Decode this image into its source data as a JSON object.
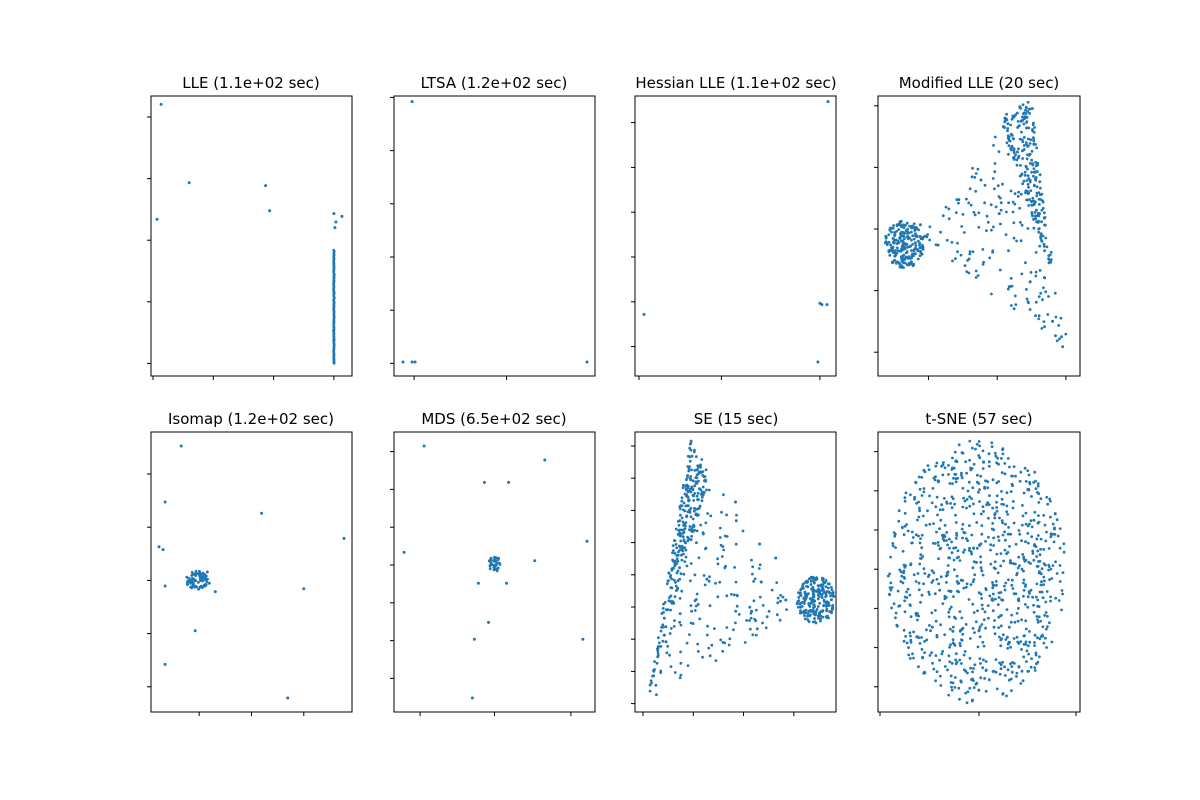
{
  "colors": {
    "points": "#1f77b4",
    "frame": "#000000",
    "background": "#ffffff"
  },
  "chart_data": [
    {
      "type": "scatter",
      "title": "LLE (1.1e+02 sec)",
      "xlabel": "",
      "ylabel": "",
      "xlim": [
        0,
        10
      ],
      "ylim": [
        0,
        10
      ],
      "tick_labels_shown": false,
      "xticks": [
        0.1,
        3.1,
        6.1,
        9.1
      ],
      "yticks": [
        0.45,
        2.65,
        4.85,
        7.05,
        9.25
      ],
      "series": [
        {
          "values": [
            {
              "x": 0.5,
              "y": 9.7
            },
            {
              "x": 1.9,
              "y": 6.9
            },
            {
              "x": 5.7,
              "y": 6.8
            },
            {
              "x": 5.9,
              "y": 5.9
            },
            {
              "x": 0.3,
              "y": 5.6
            },
            {
              "x": 9.1,
              "y": 5.8
            },
            {
              "x": 9.2,
              "y": 5.5
            },
            {
              "x": 9.5,
              "y": 5.7
            },
            {
              "x": 9.15,
              "y": 5.3
            }
          ],
          "segments": [
            {
              "x": 9.1,
              "y0": 0.45,
              "y1": 4.5,
              "points": 140
            }
          ]
        }
      ]
    },
    {
      "type": "scatter",
      "title": "LTSA (1.2e+02 sec)",
      "xlabel": "",
      "ylabel": "",
      "xlim": [
        0,
        10
      ],
      "ylim": [
        0,
        10
      ],
      "tick_labels_shown": false,
      "xticks": [
        1.0,
        5.6
      ],
      "yticks": [
        0.45,
        2.35,
        4.25,
        6.15,
        8.05,
        9.95
      ],
      "series": [
        {
          "values": [
            {
              "x": 0.9,
              "y": 9.8
            },
            {
              "x": 0.45,
              "y": 0.5
            },
            {
              "x": 0.9,
              "y": 0.5
            },
            {
              "x": 1.05,
              "y": 0.5
            },
            {
              "x": 9.6,
              "y": 0.5
            }
          ]
        }
      ]
    },
    {
      "type": "scatter",
      "title": "Hessian LLE (1.1e+02 sec)",
      "xlabel": "",
      "ylabel": "",
      "xlim": [
        0,
        10
      ],
      "ylim": [
        0,
        10
      ],
      "tick_labels_shown": false,
      "xticks": [
        0.2,
        4.3,
        9.2
      ],
      "yticks": [
        1.05,
        2.65,
        4.25,
        5.85,
        7.45,
        9.05
      ],
      "series": [
        {
          "values": [
            {
              "x": 9.6,
              "y": 9.8
            },
            {
              "x": 0.45,
              "y": 2.2
            },
            {
              "x": 9.2,
              "y": 2.6
            },
            {
              "x": 9.3,
              "y": 2.55
            },
            {
              "x": 9.55,
              "y": 2.55
            },
            {
              "x": 9.1,
              "y": 0.5
            }
          ]
        }
      ]
    },
    {
      "type": "scatter",
      "title": "Modified LLE (20 sec)",
      "xlabel": "",
      "ylabel": "",
      "xlim": [
        0,
        10
      ],
      "ylim": [
        0,
        10
      ],
      "tick_labels_shown": false,
      "xticks": [
        2.5,
        5.9,
        9.3
      ],
      "yticks": [
        0.85,
        3.05,
        5.25,
        7.45,
        9.65
      ],
      "series": [
        {
          "values": [
            {
              "x": 1.2,
              "y": 4.5
            },
            {
              "x": 2.1,
              "y": 5.4
            },
            {
              "x": 4.0,
              "y": 6.3
            },
            {
              "x": 5.1,
              "y": 7.0
            },
            {
              "x": 6.0,
              "y": 5.8
            },
            {
              "x": 6.9,
              "y": 8.0
            }
          ],
          "regions": [
            {
              "shape": "triangle",
              "points": 180,
              "vertices": [
                [
                  2.0,
                  5.1
                ],
                [
                  7.2,
                  9.8
                ],
                [
                  9.6,
                  0.5
                ]
              ]
            },
            {
              "shape": "triangle",
              "points": 220,
              "vertices": [
                [
                  6.0,
                  9.2
                ],
                [
                  7.6,
                  9.9
                ],
                [
                  8.6,
                  3.6
                ]
              ]
            },
            {
              "shape": "ellipse",
              "points": 220,
              "cx": 1.3,
              "cy": 4.7,
              "rx": 1.0,
              "ry": 0.85
            }
          ]
        }
      ]
    },
    {
      "type": "scatter",
      "title": "Isomap (1.2e+02 sec)",
      "xlabel": "",
      "ylabel": "",
      "xlim": [
        0,
        10
      ],
      "ylim": [
        0,
        10
      ],
      "tick_labels_shown": false,
      "xticks": [
        2.4,
        5.0,
        7.6
      ],
      "yticks": [
        0.9,
        2.8,
        4.7,
        6.6,
        8.5
      ],
      "series": [
        {
          "values": [
            {
              "x": 1.5,
              "y": 9.5
            },
            {
              "x": 0.7,
              "y": 7.5
            },
            {
              "x": 0.4,
              "y": 5.9
            },
            {
              "x": 0.6,
              "y": 5.8
            },
            {
              "x": 0.7,
              "y": 4.5
            },
            {
              "x": 2.8,
              "y": 5.0
            },
            {
              "x": 2.9,
              "y": 4.6
            },
            {
              "x": 3.2,
              "y": 4.3
            },
            {
              "x": 2.2,
              "y": 2.9
            },
            {
              "x": 0.7,
              "y": 1.7
            },
            {
              "x": 5.5,
              "y": 7.1
            },
            {
              "x": 7.6,
              "y": 4.4
            },
            {
              "x": 9.6,
              "y": 6.2
            },
            {
              "x": 6.8,
              "y": 0.5
            }
          ],
          "regions": [
            {
              "shape": "ellipse",
              "points": 80,
              "cx": 2.3,
              "cy": 4.7,
              "rx": 0.55,
              "ry": 0.35
            }
          ]
        }
      ]
    },
    {
      "type": "scatter",
      "title": "MDS (6.5e+02 sec)",
      "xlabel": "",
      "ylabel": "",
      "xlim": [
        0,
        10
      ],
      "ylim": [
        0,
        10
      ],
      "tick_labels_shown": false,
      "xticks": [
        1.3,
        5.0,
        8.8
      ],
      "yticks": [
        1.2,
        2.55,
        3.9,
        5.25,
        6.6,
        7.95,
        9.3
      ],
      "series": [
        {
          "values": [
            {
              "x": 1.5,
              "y": 9.5
            },
            {
              "x": 7.5,
              "y": 9.0
            },
            {
              "x": 4.5,
              "y": 8.2
            },
            {
              "x": 5.7,
              "y": 8.2
            },
            {
              "x": 0.5,
              "y": 5.7
            },
            {
              "x": 9.6,
              "y": 6.1
            },
            {
              "x": 4.2,
              "y": 4.6
            },
            {
              "x": 5.6,
              "y": 4.6
            },
            {
              "x": 7.0,
              "y": 5.4
            },
            {
              "x": 4.7,
              "y": 3.2
            },
            {
              "x": 4.0,
              "y": 2.6
            },
            {
              "x": 9.4,
              "y": 2.6
            },
            {
              "x": 3.9,
              "y": 0.5
            }
          ],
          "regions": [
            {
              "shape": "ellipse",
              "points": 40,
              "cx": 5.0,
              "cy": 5.3,
              "rx": 0.3,
              "ry": 0.3
            }
          ]
        }
      ]
    },
    {
      "type": "scatter",
      "title": "SE (15 sec)",
      "xlabel": "",
      "ylabel": "",
      "xlim": [
        0,
        10
      ],
      "ylim": [
        0,
        10
      ],
      "tick_labels_shown": false,
      "xticks": [
        0.4,
        2.9,
        5.4,
        7.9
      ],
      "yticks": [
        0.3,
        1.45,
        2.6,
        3.75,
        4.9,
        6.05,
        7.2,
        8.35,
        9.5
      ],
      "series": [
        {
          "values": [
            {
              "x": 5.0,
              "y": 7.5
            },
            {
              "x": 6.2,
              "y": 6.0
            },
            {
              "x": 7.0,
              "y": 5.5
            },
            {
              "x": 4.5,
              "y": 5.2
            },
            {
              "x": 7.5,
              "y": 4.0
            },
            {
              "x": 5.8,
              "y": 3.6
            }
          ],
          "regions": [
            {
              "shape": "triangle",
              "points": 200,
              "vertices": [
                [
                  0.6,
                  0.4
                ],
                [
                  2.8,
                  9.8
                ],
                [
                  8.0,
                  3.5
                ]
              ]
            },
            {
              "shape": "triangle",
              "points": 240,
              "vertices": [
                [
                  0.6,
                  0.4
                ],
                [
                  2.8,
                  9.8
                ],
                [
                  3.6,
                  8.2
                ]
              ]
            },
            {
              "shape": "ellipse",
              "points": 220,
              "cx": 9.0,
              "cy": 4.0,
              "rx": 0.95,
              "ry": 0.85
            }
          ]
        }
      ]
    },
    {
      "type": "scatter",
      "title": "t-SNE (57 sec)",
      "xlabel": "",
      "ylabel": "",
      "xlim": [
        0,
        10
      ],
      "ylim": [
        0,
        10
      ],
      "tick_labels_shown": false,
      "xticks": [
        0.1,
        5.0,
        9.8
      ],
      "yticks": [
        0.9,
        2.3,
        3.7,
        5.1,
        6.5,
        7.9,
        9.3
      ],
      "series": [
        {
          "values": [],
          "regions": [
            {
              "shape": "ellipse",
              "points": 900,
              "cx": 4.9,
              "cy": 5.0,
              "rx": 4.4,
              "ry": 4.7
            }
          ]
        }
      ]
    }
  ]
}
